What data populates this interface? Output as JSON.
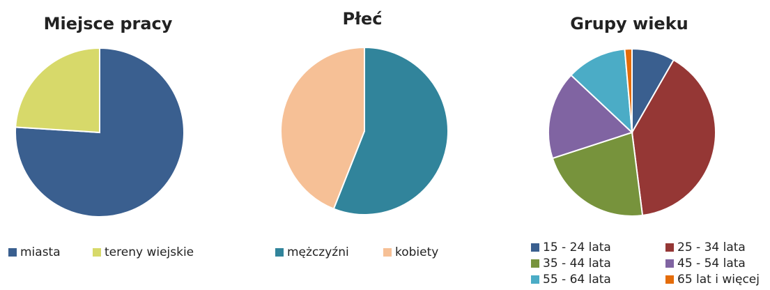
{
  "chart_data": [
    {
      "type": "pie",
      "title": "Miejsce pracy",
      "categories": [
        "miasta",
        "tereny wiejskie"
      ],
      "values": [
        76,
        24
      ],
      "colors": [
        "#3a5f8f",
        "#d7d96a"
      ]
    },
    {
      "type": "pie",
      "title": "Płeć",
      "categories": [
        "mężczyźni",
        "kobiety"
      ],
      "values": [
        56,
        44
      ],
      "colors": [
        "#31849b",
        "#f6c096"
      ]
    },
    {
      "type": "pie",
      "title": "Grupy wieku",
      "categories": [
        "15 - 24 lata",
        "25 - 34 lata",
        "35 - 44 lata",
        "45 - 54 lata",
        "55 - 64 lata",
        "65 lat i więcej"
      ],
      "values": [
        8.3,
        39.7,
        22,
        17,
        11.6,
        1.4
      ],
      "colors": [
        "#3a5f8f",
        "#953735",
        "#77933c",
        "#8064a2",
        "#4bacc6",
        "#e46c0a"
      ]
    }
  ]
}
